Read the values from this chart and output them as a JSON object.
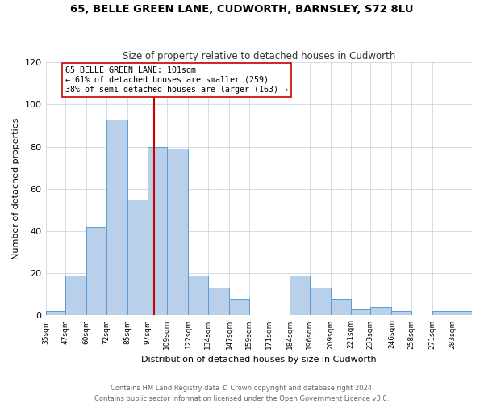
{
  "title": "65, BELLE GREEN LANE, CUDWORTH, BARNSLEY, S72 8LU",
  "subtitle": "Size of property relative to detached houses in Cudworth",
  "xlabel": "Distribution of detached houses by size in Cudworth",
  "ylabel": "Number of detached properties",
  "bin_labels": [
    "35sqm",
    "47sqm",
    "60sqm",
    "72sqm",
    "85sqm",
    "97sqm",
    "109sqm",
    "122sqm",
    "134sqm",
    "147sqm",
    "159sqm",
    "171sqm",
    "184sqm",
    "196sqm",
    "209sqm",
    "221sqm",
    "233sqm",
    "246sqm",
    "258sqm",
    "271sqm",
    "283sqm"
  ],
  "bin_edges": [
    35,
    47,
    60,
    72,
    85,
    97,
    109,
    122,
    134,
    147,
    159,
    171,
    184,
    196,
    209,
    221,
    233,
    246,
    258,
    271,
    283,
    295
  ],
  "bar_heights": [
    2,
    19,
    42,
    93,
    55,
    80,
    79,
    19,
    13,
    8,
    0,
    0,
    19,
    13,
    8,
    3,
    4,
    2,
    0,
    2,
    2
  ],
  "bar_color": "#b8d0ea",
  "bar_edge_color": "#5b9bd5",
  "property_size": 101,
  "vline_color": "#cc0000",
  "annotation_title": "65 BELLE GREEN LANE: 101sqm",
  "annotation_line1": "← 61% of detached houses are smaller (259)",
  "annotation_line2": "38% of semi-detached houses are larger (163) →",
  "annotation_box_color": "#ffffff",
  "annotation_box_edge": "#cc0000",
  "ylim": [
    0,
    120
  ],
  "yticks": [
    0,
    20,
    40,
    60,
    80,
    100,
    120
  ],
  "footnote1": "Contains HM Land Registry data © Crown copyright and database right 2024.",
  "footnote2": "Contains public sector information licensed under the Open Government Licence v3.0."
}
